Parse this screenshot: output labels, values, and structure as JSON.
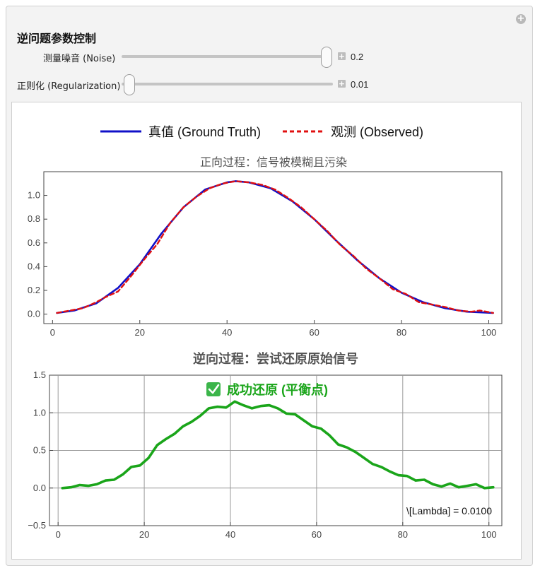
{
  "panel": {
    "title": "逆问题参数控制",
    "expand_icon": "plus-circle-icon"
  },
  "controls": [
    {
      "label": "测量噪音 (Noise)",
      "value": "0.2",
      "position": 1.0
    },
    {
      "label": "正则化 (Regularization)",
      "value": "0.01",
      "position": 0.0
    }
  ],
  "legend": {
    "truth": "真值 (Ground Truth)",
    "observed": "观测 (Observed)"
  },
  "colors": {
    "truth": "#1010c8",
    "observed": "#e01010",
    "recovered": "#1aa51a",
    "success": "#1aa51a"
  },
  "chart_data": [
    {
      "type": "line",
      "title": "正向过程：信号被模糊且污染",
      "xlim": [
        -2,
        103
      ],
      "ylim": [
        -0.08,
        1.2
      ],
      "xticks": [
        0,
        20,
        40,
        60,
        80,
        100
      ],
      "yticks": [
        0.0,
        0.2,
        0.4,
        0.6,
        0.8,
        1.0
      ],
      "ytick_labels": [
        "0.0",
        "0.2",
        "0.4",
        "0.6",
        "0.8",
        "1.0"
      ],
      "series": [
        {
          "name": "真值 (Ground Truth)",
          "x": [
            1,
            5,
            10,
            15,
            20,
            25,
            30,
            35,
            40,
            42,
            45,
            50,
            55,
            60,
            65,
            70,
            75,
            80,
            85,
            90,
            95,
            101
          ],
          "y": [
            0.01,
            0.03,
            0.09,
            0.22,
            0.42,
            0.68,
            0.9,
            1.05,
            1.11,
            1.12,
            1.11,
            1.06,
            0.95,
            0.8,
            0.62,
            0.45,
            0.3,
            0.18,
            0.1,
            0.05,
            0.02,
            0.01
          ]
        },
        {
          "name": "观测 (Observed)",
          "x": [
            1,
            4,
            7,
            10,
            12,
            15,
            18,
            21,
            24,
            27,
            30,
            33,
            36,
            39,
            42,
            45,
            48,
            51,
            54,
            57,
            60,
            63,
            66,
            69,
            72,
            75,
            78,
            81,
            84,
            87,
            90,
            93,
            96,
            98,
            101
          ],
          "y": [
            0.01,
            0.03,
            0.05,
            0.1,
            0.14,
            0.19,
            0.32,
            0.46,
            0.59,
            0.77,
            0.9,
            0.99,
            1.06,
            1.1,
            1.12,
            1.11,
            1.09,
            1.05,
            0.98,
            0.9,
            0.8,
            0.7,
            0.58,
            0.49,
            0.38,
            0.3,
            0.21,
            0.17,
            0.1,
            0.08,
            0.06,
            0.03,
            0.02,
            0.03,
            0.01
          ]
        }
      ]
    },
    {
      "type": "line",
      "title": "逆向过程：尝试还原原始信号",
      "xlim": [
        -2,
        103
      ],
      "ylim": [
        -0.5,
        1.5
      ],
      "xticks": [
        0,
        20,
        40,
        60,
        80,
        100
      ],
      "yticks": [
        -0.5,
        0.0,
        0.5,
        1.0,
        1.5
      ],
      "ytick_labels": [
        "−0.5",
        "0.0",
        "0.5",
        "1.0",
        "1.5"
      ],
      "grid": true,
      "annotation": "成功还原 (平衡点)",
      "lambda_label": "\\[Lambda] = 0.0100",
      "series": [
        {
          "x": [
            1,
            3,
            5,
            7,
            9,
            11,
            13,
            15,
            17,
            19,
            21,
            23,
            25,
            27,
            29,
            31,
            33,
            35,
            37,
            39,
            41,
            43,
            45,
            47,
            49,
            51,
            53,
            55,
            57,
            59,
            61,
            63,
            65,
            67,
            69,
            71,
            73,
            75,
            77,
            79,
            81,
            83,
            85,
            87,
            89,
            91,
            93,
            95,
            97,
            99,
            101
          ],
          "y": [
            0.0,
            0.01,
            0.04,
            0.03,
            0.05,
            0.1,
            0.11,
            0.18,
            0.28,
            0.3,
            0.4,
            0.57,
            0.65,
            0.72,
            0.82,
            0.88,
            0.96,
            1.06,
            1.08,
            1.07,
            1.15,
            1.1,
            1.06,
            1.09,
            1.1,
            1.06,
            0.99,
            0.98,
            0.9,
            0.82,
            0.79,
            0.7,
            0.58,
            0.54,
            0.48,
            0.4,
            0.32,
            0.28,
            0.22,
            0.17,
            0.16,
            0.1,
            0.11,
            0.05,
            0.02,
            0.06,
            0.01,
            0.03,
            0.05,
            0.0,
            0.01
          ]
        }
      ]
    }
  ]
}
